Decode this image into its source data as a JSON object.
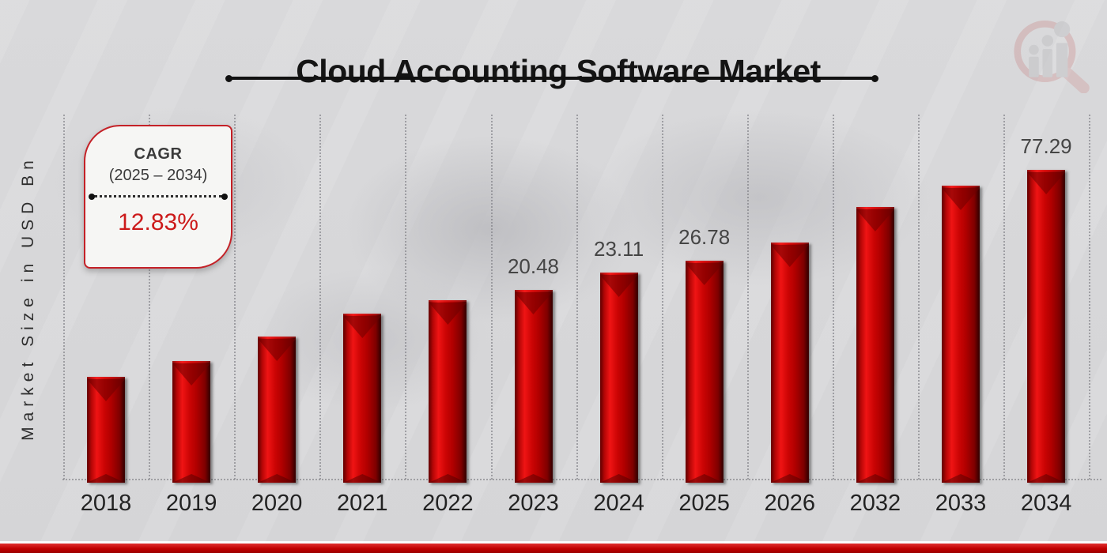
{
  "title": "Cloud Accounting Software Market",
  "y_axis_label": "Market Size in USD Bn",
  "cagr_box": {
    "label": "CAGR",
    "period": "(2025 – 2034)",
    "value": "12.83%"
  },
  "logo": {
    "name": "market-research-magnifier-logo"
  },
  "colors": {
    "bar_red": "#c40808",
    "accent_red": "#c42127",
    "cagr_value_red": "#cc1a1a",
    "background": "#d9d9db",
    "title_text": "#141414",
    "bottom_strip": "#c00000",
    "bottom_strip_light": "#e03030"
  },
  "chart_data": {
    "type": "bar",
    "title": "Cloud Accounting Software Market",
    "ylabel": "Market Size in USD Bn",
    "unit": "USD Bn",
    "categories": [
      "2018",
      "2019",
      "2020",
      "2021",
      "2022",
      "2023",
      "2024",
      "2025",
      "2026",
      "2032",
      "2033",
      "2034"
    ],
    "values": [
      null,
      null,
      null,
      null,
      null,
      20.48,
      23.11,
      26.78,
      null,
      null,
      null,
      77.29
    ],
    "bar_labels": [
      "",
      "",
      "",
      "",
      "",
      "20.48",
      "23.11",
      "26.78",
      "",
      "",
      "",
      "77.29"
    ],
    "bar_heights_pct": [
      29.0,
      33.3,
      40.0,
      46.3,
      50.0,
      52.8,
      57.6,
      60.8,
      65.8,
      75.5,
      81.4,
      85.7
    ],
    "cagr": "12.83%",
    "cagr_period": "2025–2034",
    "grid": "vertical-dotted",
    "legend": "none",
    "bar_color": "#c40808"
  }
}
